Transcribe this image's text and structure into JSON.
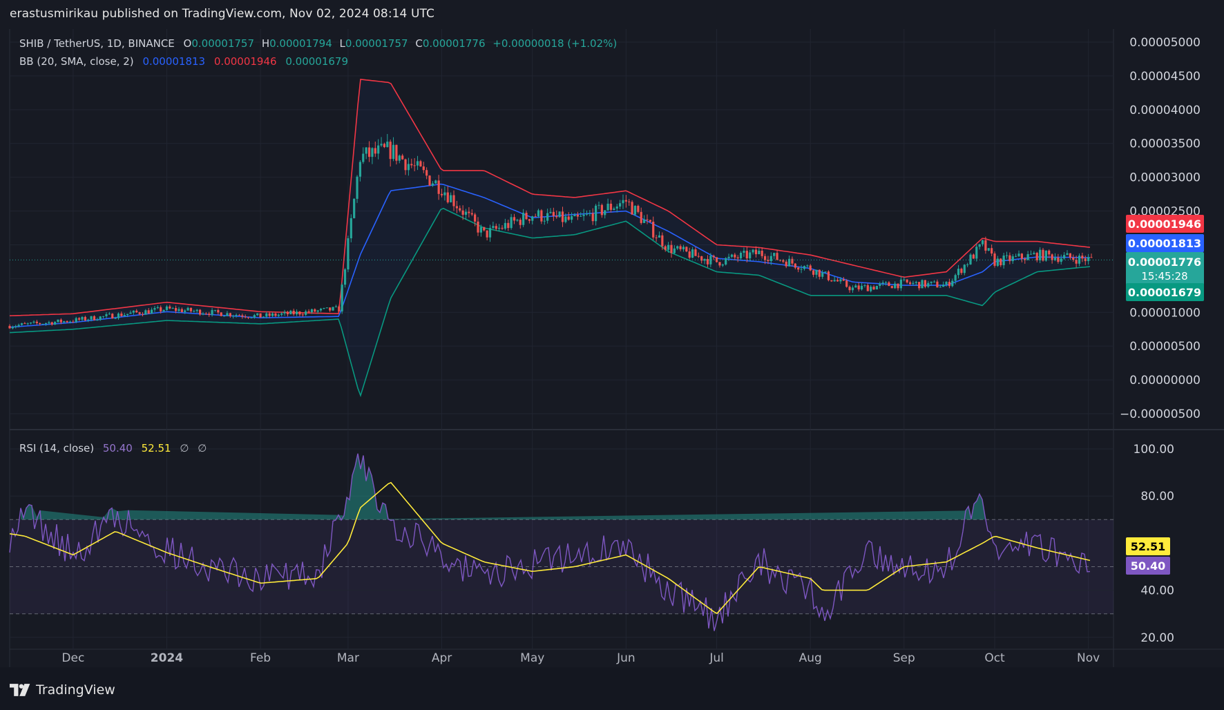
{
  "header": {
    "published": "erastusmirikau published on TradingView.com, Nov 02, 2024 08:14 UTC"
  },
  "footer": {
    "brand": "TradingView",
    "logo_icon": "tradingview-logo-icon"
  },
  "legend": {
    "symbol": "SHIB / TetherUS, 1D, BINANCE",
    "o_label": "O",
    "o_value": "0.00001757",
    "h_label": "H",
    "h_value": "0.00001794",
    "l_label": "L",
    "l_value": "0.00001757",
    "c_label": "C",
    "c_value": "0.00001776",
    "change": "+0.00000018 (+1.02%)",
    "bb_label": "BB (20, SMA, close, 2)",
    "bb_basis": "0.00001813",
    "bb_upper": "0.00001946",
    "bb_lower": "0.00001679",
    "rsi_label": "RSI (14, close)",
    "rsi_value": "50.40",
    "rsi_ma": "52.51",
    "rsi_na1": "∅",
    "rsi_na2": "∅"
  },
  "price_axis": {
    "ticks": [
      "0.00005000",
      "0.00004500",
      "0.00004000",
      "0.00003500",
      "0.00003000",
      "0.00002500",
      "0.00001000",
      "0.00000500",
      "0.00000000",
      "−0.00000500"
    ],
    "markers": [
      {
        "label": "0.00001946",
        "value": 1.946e-05,
        "color": "#f23645"
      },
      {
        "label": "0.00001813",
        "value": 1.813e-05,
        "color": "#2962ff"
      },
      {
        "label": "0.00001776",
        "value": 1.776e-05,
        "color": "#26a69a",
        "sub": "15:45:28"
      },
      {
        "label": "0.00001679",
        "value": 1.679e-05,
        "color": "#089981"
      }
    ]
  },
  "rsi_axis": {
    "ticks": [
      "100.00",
      "80.00",
      "40.00",
      "20.00"
    ],
    "markers": [
      {
        "label": "52.51",
        "value": 52.51,
        "color": "#ffeb3b",
        "text": "#000000"
      },
      {
        "label": "50.40",
        "value": 50.4,
        "color": "#7e57c2",
        "text": "#ffffff"
      }
    ],
    "band": [
      30,
      70
    ],
    "mid": 50
  },
  "time_axis": [
    "Dec",
    "2024",
    "Feb",
    "Mar",
    "Apr",
    "May",
    "Jun",
    "Jul",
    "Aug",
    "Sep",
    "Oct",
    "Nov"
  ],
  "colors": {
    "background": "#171a23",
    "up": "#26a69a",
    "down": "#ef5350",
    "bb_upper": "#f23645",
    "bb_basis": "#2962ff",
    "bb_lower": "#089981",
    "rsi": "#7e57c2",
    "rsi_ma": "#ffeb3b"
  },
  "chart_data": [
    {
      "type": "line",
      "title": "SHIB / TetherUS, 1D, BINANCE",
      "ylim": [
        -6.5e-06,
        5.15e-05
      ],
      "x": [
        "2023-11-10",
        "2023-12-01",
        "2024-01-01",
        "2024-02-01",
        "2024-02-27",
        "2024-03-05",
        "2024-03-15",
        "2024-04-01",
        "2024-04-15",
        "2024-05-01",
        "2024-05-15",
        "2024-06-01",
        "2024-06-15",
        "2024-07-01",
        "2024-07-15",
        "2024-08-01",
        "2024-08-15",
        "2024-09-01",
        "2024-09-15",
        "2024-09-27",
        "2024-10-01",
        "2024-10-15",
        "2024-11-02"
      ],
      "series": [
        {
          "name": "BB upper",
          "values": [
            9.5e-06,
            9.8e-06,
            1.15e-05,
            1.01e-05,
            9.8e-06,
            4.45e-05,
            4.4e-05,
            3.1e-05,
            3.1e-05,
            2.75e-05,
            2.7e-05,
            2.8e-05,
            2.5e-05,
            2e-05,
            1.96e-05,
            1.85e-05,
            1.7e-05,
            1.52e-05,
            1.6e-05,
            2.1e-05,
            2.05e-05,
            2.05e-05,
            1.96e-05
          ]
        },
        {
          "name": "BB basis",
          "values": [
            7.8e-06,
            8.5e-06,
            1.01e-05,
            9.2e-06,
            9.4e-06,
            1.85e-05,
            2.8e-05,
            2.9e-05,
            2.7e-05,
            2.4e-05,
            2.45e-05,
            2.5e-05,
            2.2e-05,
            1.8e-05,
            1.75e-05,
            1.65e-05,
            1.45e-05,
            1.4e-05,
            1.4e-05,
            1.6e-05,
            1.75e-05,
            1.82e-05,
            1.81e-05
          ]
        },
        {
          "name": "BB lower",
          "values": [
            7e-06,
            7.5e-06,
            8.8e-06,
            8.3e-06,
            9e-06,
            -2.5e-06,
            1.2e-05,
            2.55e-05,
            2.25e-05,
            2.1e-05,
            2.15e-05,
            2.35e-05,
            1.9e-05,
            1.6e-05,
            1.55e-05,
            1.25e-05,
            1.25e-05,
            1.25e-05,
            1.25e-05,
            1.1e-05,
            1.3e-05,
            1.6e-05,
            1.68e-05
          ]
        },
        {
          "name": "Close",
          "values": [
            8e-06,
            8.8e-06,
            1.05e-05,
            9.4e-06,
            1.05e-05,
            3.3e-05,
            3.4e-05,
            2.85e-05,
            2.15e-05,
            2.45e-05,
            2.35e-05,
            2.65e-05,
            1.95e-05,
            1.75e-05,
            1.88e-05,
            1.65e-05,
            1.35e-05,
            1.43e-05,
            1.4e-05,
            2e-05,
            1.75e-05,
            1.85e-05,
            1.78e-05
          ]
        }
      ]
    },
    {
      "type": "line",
      "title": "RSI (14, close)",
      "ylim": [
        15,
        102
      ],
      "x": [
        "2023-11-10",
        "2023-11-15",
        "2023-12-01",
        "2023-12-15",
        "2024-01-01",
        "2024-01-15",
        "2024-02-01",
        "2024-02-20",
        "2024-03-01",
        "2024-03-05",
        "2024-03-15",
        "2024-04-01",
        "2024-04-15",
        "2024-05-01",
        "2024-05-15",
        "2024-06-01",
        "2024-06-15",
        "2024-07-01",
        "2024-07-15",
        "2024-08-01",
        "2024-08-05",
        "2024-08-20",
        "2024-09-01",
        "2024-09-15",
        "2024-09-27",
        "2024-10-01",
        "2024-10-15",
        "2024-11-02"
      ],
      "series": [
        {
          "name": "RSI",
          "values": [
            63,
            74,
            55,
            72,
            57,
            50,
            45,
            48,
            80,
            95,
            70,
            55,
            45,
            52,
            55,
            58,
            40,
            28,
            52,
            40,
            28,
            58,
            50,
            50,
            82,
            55,
            60,
            50.4
          ]
        },
        {
          "name": "RSI MA",
          "values": [
            64,
            63,
            55,
            65,
            56,
            50,
            43,
            45,
            60,
            75,
            86,
            60,
            52,
            48,
            50,
            55,
            45,
            30,
            50,
            45,
            40,
            40,
            50,
            52,
            60,
            63,
            58,
            52.51
          ]
        }
      ]
    }
  ]
}
